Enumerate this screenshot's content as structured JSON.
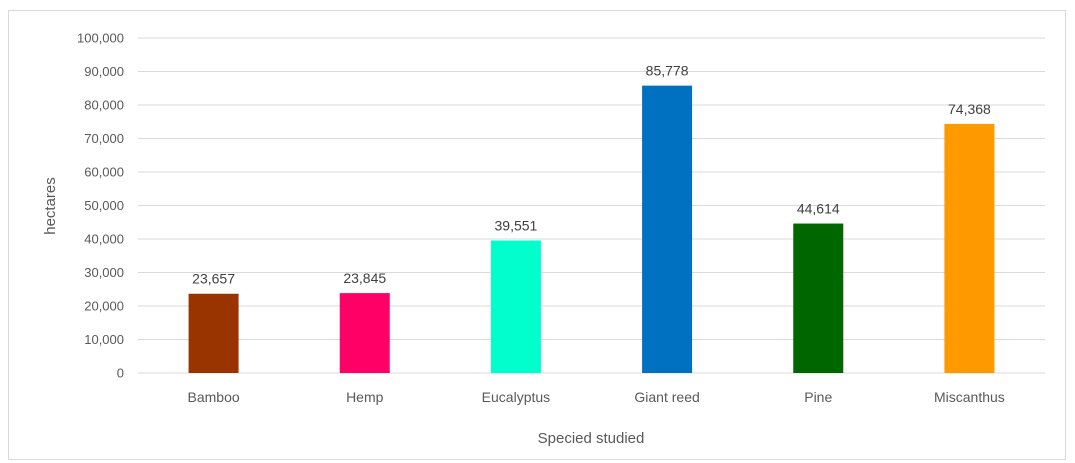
{
  "chart_data": {
    "type": "bar",
    "title": "",
    "xlabel": "Specied studied",
    "ylabel": "hectares",
    "categories": [
      "Bamboo",
      "Hemp",
      "Eucalyptus",
      "Giant reed",
      "Pine",
      "Miscanthus"
    ],
    "values": [
      23657,
      23845,
      39551,
      85778,
      44614,
      74368
    ],
    "value_labels": [
      "23,657",
      "23,845",
      "39,551",
      "85,778",
      "44,614",
      "74,368"
    ],
    "colors": [
      "#993300",
      "#ff0066",
      "#00ffcc",
      "#0070c0",
      "#006600",
      "#ff9900"
    ],
    "ylim": [
      0,
      100000
    ],
    "yticks": [
      0,
      10000,
      20000,
      30000,
      40000,
      50000,
      60000,
      70000,
      80000,
      90000,
      100000
    ],
    "ytick_labels": [
      "0",
      "10,000",
      "20,000",
      "30,000",
      "40,000",
      "50,000",
      "60,000",
      "70,000",
      "80,000",
      "90,000",
      "100,000"
    ],
    "grid": true,
    "legend": "none",
    "gridline_color": "#d9d9d9"
  }
}
